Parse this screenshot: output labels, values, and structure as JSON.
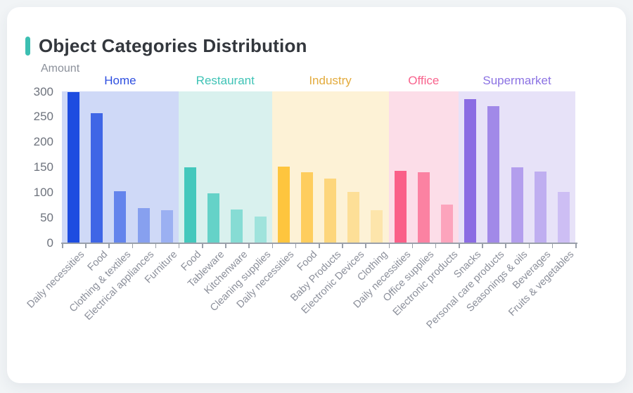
{
  "page_title": "Object Categories Distribution",
  "accent_color": "#3cbfb2",
  "chart_data": {
    "type": "bar",
    "title": "Object Categories Distribution",
    "xlabel": "",
    "ylabel": "Amount",
    "ylim": [
      0,
      300
    ],
    "yticks": [
      0,
      50,
      100,
      150,
      200,
      250,
      300
    ],
    "grid": false,
    "legend_position": "inline-group-headers-top",
    "groups": [
      {
        "name": "Home",
        "label_color": "#2e4fe0",
        "band_color": "#cfd9f7",
        "categories": [
          "Daily necessities",
          "Food",
          "Clothing & textiles",
          "Electrical appliances",
          "Furniture"
        ],
        "values": [
          298,
          257,
          102,
          69,
          64
        ],
        "bar_colors": [
          "#1d4ce0",
          "#3f66e6",
          "#6484ec",
          "#87a0ef",
          "#9bb0f2"
        ]
      },
      {
        "name": "Restaurant",
        "label_color": "#3fc3b6",
        "band_color": "#d9f1ee",
        "categories": [
          "Food",
          "Tableware",
          "Kitchenware",
          "Cleaning supplies"
        ],
        "values": [
          149,
          97,
          65,
          51
        ],
        "bar_colors": [
          "#44c8bc",
          "#65d2c8",
          "#86dcd4",
          "#9fe3dc"
        ]
      },
      {
        "name": "Industry",
        "label_color": "#e3ab3d",
        "band_color": "#fdf2d6",
        "categories": [
          "Daily necessities",
          "Food",
          "Baby Products",
          "Electronic Devices",
          "Clothing"
        ],
        "values": [
          151,
          139,
          127,
          100,
          64
        ],
        "bar_colors": [
          "#fec53e",
          "#fecd5e",
          "#fdd67c",
          "#fddf97",
          "#fde5ab"
        ]
      },
      {
        "name": "Office",
        "label_color": "#f8638d",
        "band_color": "#fcdde8",
        "categories": [
          "Daily necessities",
          "Office supplies",
          "Electronic products"
        ],
        "values": [
          143,
          139,
          76
        ],
        "bar_colors": [
          "#fa5f88",
          "#fb82a2",
          "#fca4bc"
        ]
      },
      {
        "name": "Supermarket",
        "label_color": "#8b72e3",
        "band_color": "#e7e2f8",
        "categories": [
          "Snacks",
          "Personal care products",
          "Seasonings & oils",
          "Beverages",
          "Fruits & vegetables"
        ],
        "values": [
          285,
          271,
          149,
          141,
          101
        ],
        "bar_colors": [
          "#8b6ce3",
          "#a189e8",
          "#b39eed",
          "#bfaef0",
          "#cdbef4"
        ]
      }
    ]
  }
}
